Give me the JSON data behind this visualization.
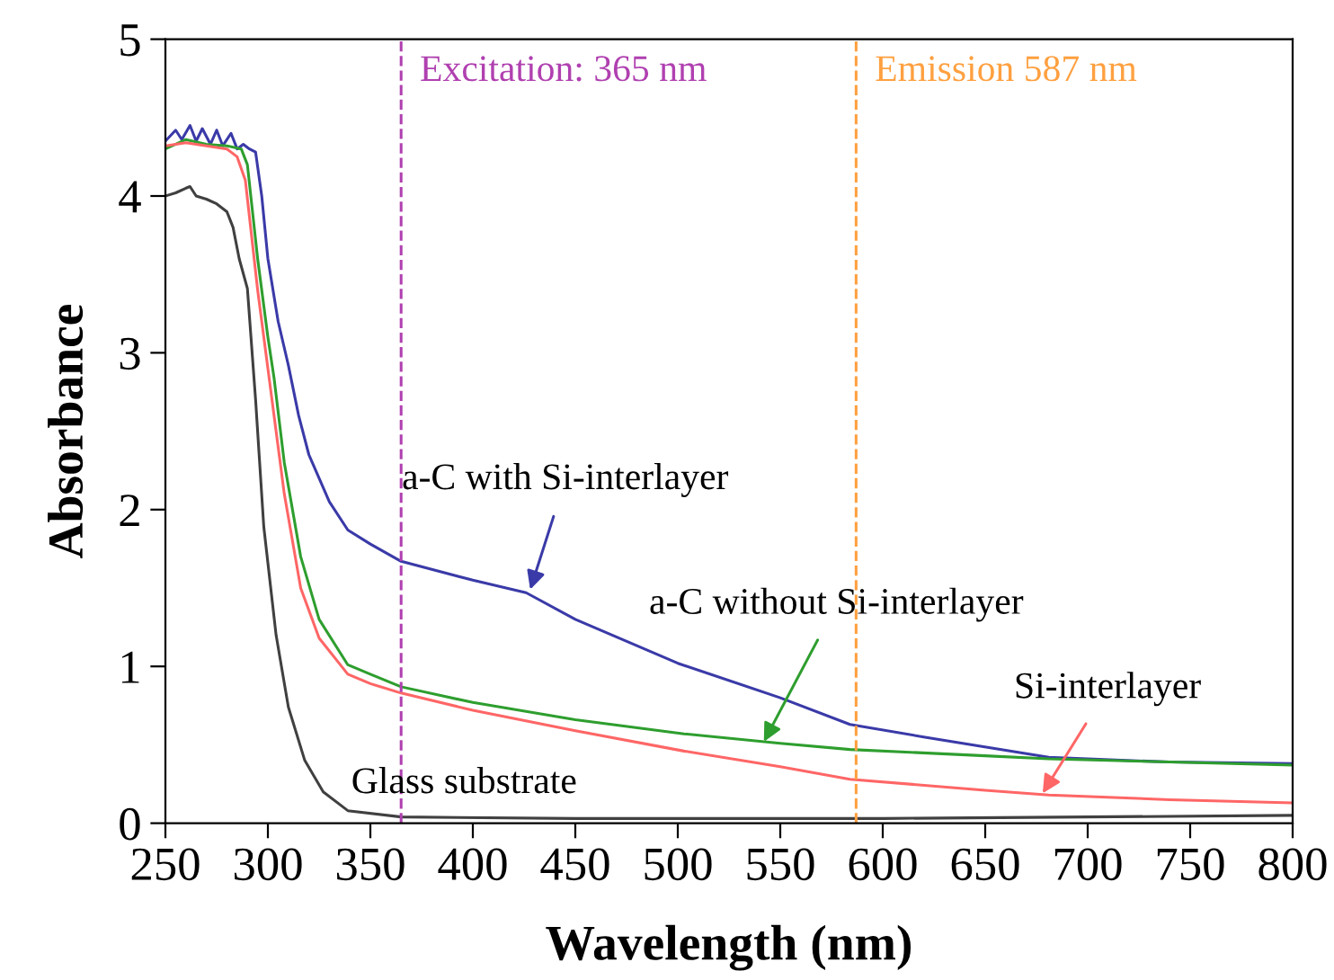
{
  "chart_data": {
    "type": "line",
    "xlabel": "Wavelength (nm)",
    "ylabel": "Absorbance",
    "xlim": [
      250,
      800
    ],
    "ylim": [
      0,
      5
    ],
    "xticks": [
      250,
      300,
      350,
      400,
      450,
      500,
      550,
      600,
      650,
      700,
      750,
      800
    ],
    "yticks": [
      0,
      1,
      2,
      3,
      4,
      5
    ],
    "grid": false,
    "legend": false,
    "marker": "none",
    "line_style": "solid",
    "series": [
      {
        "color": "#3a3aa8",
        "x": [
          250,
          255,
          258,
          262,
          265,
          268,
          272,
          275,
          278,
          282,
          285,
          288,
          291,
          294,
          297,
          300,
          305,
          310,
          315,
          320,
          330,
          339,
          350,
          365,
          400,
          426,
          450,
          500,
          550,
          584,
          620,
          681,
          740,
          800
        ],
        "values": [
          4.35,
          4.42,
          4.36,
          4.45,
          4.35,
          4.43,
          4.33,
          4.42,
          4.32,
          4.4,
          4.3,
          4.33,
          4.3,
          4.28,
          4.0,
          3.6,
          3.2,
          2.92,
          2.6,
          2.35,
          2.05,
          1.87,
          1.78,
          1.67,
          1.55,
          1.47,
          1.3,
          1.02,
          0.8,
          0.63,
          0.55,
          0.42,
          0.39,
          0.38
        ]
      },
      {
        "color": "#2e9e2e",
        "x": [
          250,
          260,
          270,
          280,
          287,
          290,
          295,
          300,
          303,
          308,
          316,
          325,
          339,
          350,
          365,
          400,
          450,
          503,
          550,
          584,
          650,
          681,
          740,
          800
        ],
        "values": [
          4.3,
          4.36,
          4.33,
          4.32,
          4.3,
          4.2,
          3.6,
          3.1,
          2.84,
          2.3,
          1.7,
          1.3,
          1.01,
          0.95,
          0.87,
          0.77,
          0.66,
          0.57,
          0.51,
          0.47,
          0.43,
          0.41,
          0.39,
          0.37
        ]
      },
      {
        "color": "#ff6666",
        "x": [
          250,
          260,
          270,
          280,
          285,
          289,
          295,
          300,
          308,
          316,
          325,
          339,
          350,
          365,
          400,
          450,
          503,
          550,
          584,
          650,
          681,
          740,
          800
        ],
        "values": [
          4.32,
          4.34,
          4.32,
          4.3,
          4.25,
          4.1,
          3.4,
          2.9,
          2.1,
          1.5,
          1.18,
          0.95,
          0.89,
          0.83,
          0.72,
          0.59,
          0.46,
          0.36,
          0.28,
          0.21,
          0.18,
          0.15,
          0.13
        ]
      },
      {
        "color": "#404040",
        "x": [
          250,
          255,
          260,
          262,
          265,
          270,
          275,
          280,
          283,
          286,
          290,
          294,
          298,
          304,
          310,
          318,
          327,
          339,
          365,
          450,
          600,
          700,
          800
        ],
        "values": [
          4.0,
          4.02,
          4.05,
          4.06,
          4.0,
          3.98,
          3.95,
          3.9,
          3.8,
          3.6,
          3.41,
          2.7,
          1.89,
          1.2,
          0.74,
          0.4,
          0.2,
          0.08,
          0.04,
          0.03,
          0.03,
          0.04,
          0.05
        ]
      }
    ],
    "ref_lines": [
      {
        "axis": "x",
        "value": 365,
        "label": "Excitation: 365 nm",
        "color": "#b040b0",
        "line_style": "dashed"
      },
      {
        "axis": "x",
        "value": 587,
        "label": "Emission 587 nm",
        "color": "#ffa040",
        "line_style": "dashed"
      }
    ],
    "annotations": [
      {
        "text": "a-C with Si-interlayer",
        "x": 428,
        "y": 1.49
      },
      {
        "text": "a-C without Si-interlayer",
        "x": 542,
        "y": 0.52
      },
      {
        "text": "Si-interlayer",
        "x": 678,
        "y": 0.19
      },
      "Glass substrate"
    ]
  }
}
